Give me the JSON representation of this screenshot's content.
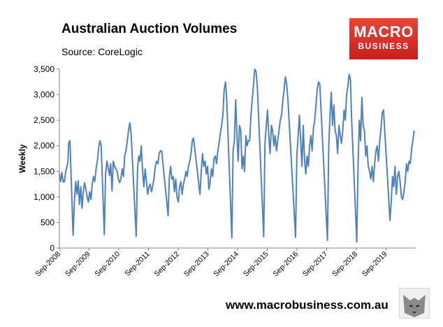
{
  "header": {
    "title": "Australian Auction Volumes",
    "subtitle": "Source: CoreLogic"
  },
  "logo": {
    "line1": "MACRO",
    "line2": "BUSINESS",
    "color": "#d9302a"
  },
  "footer": {
    "url": "www.macrobusiness.com.au",
    "icon": "wolf-icon"
  },
  "chart_data": {
    "type": "line",
    "title": "Australian Auction Volumes",
    "ylabel": "Weekly",
    "xlabel": "",
    "ylim": [
      0,
      3500
    ],
    "yticks": [
      0,
      500,
      1000,
      1500,
      2000,
      2500,
      3000,
      3500
    ],
    "ytick_labels": [
      "0",
      "500",
      "1,000",
      "1,500",
      "2,000",
      "2,500",
      "3,000",
      "3,500"
    ],
    "xticks": [
      "Sep-2008",
      "Sep-2009",
      "Sep-2010",
      "Sep-2011",
      "Sep-2012",
      "Sep-2013",
      "Sep-2014",
      "Sep-2015",
      "Sep-2016",
      "Sep-2017",
      "Sep-2018",
      "Sep-2019"
    ],
    "grid": false,
    "line_color": "#4f81bd",
    "series": [
      {
        "values": [
          [
            2008.67,
            1450
          ],
          [
            2008.71,
            1300
          ],
          [
            2008.75,
            1480
          ],
          [
            2008.79,
            1290
          ],
          [
            2008.83,
            1300
          ],
          [
            2008.87,
            1500
          ],
          [
            2008.91,
            1600
          ],
          [
            2008.94,
            1700
          ],
          [
            2008.96,
            2050
          ],
          [
            2009.0,
            2100
          ],
          [
            2009.1,
            250
          ],
          [
            2009.14,
            900
          ],
          [
            2009.18,
            1300
          ],
          [
            2009.22,
            1050
          ],
          [
            2009.26,
            1320
          ],
          [
            2009.3,
            850
          ],
          [
            2009.34,
            1200
          ],
          [
            2009.38,
            780
          ],
          [
            2009.42,
            1100
          ],
          [
            2009.46,
            1280
          ],
          [
            2009.5,
            1150
          ],
          [
            2009.54,
            1000
          ],
          [
            2009.58,
            900
          ],
          [
            2009.62,
            1100
          ],
          [
            2009.66,
            950
          ],
          [
            2009.7,
            1250
          ],
          [
            2009.74,
            1400
          ],
          [
            2009.78,
            1300
          ],
          [
            2009.82,
            1550
          ],
          [
            2009.86,
            1700
          ],
          [
            2009.9,
            1950
          ],
          [
            2009.94,
            2100
          ],
          [
            2009.98,
            2000
          ],
          [
            2010.08,
            260
          ],
          [
            2010.12,
            1450
          ],
          [
            2010.16,
            1700
          ],
          [
            2010.2,
            1580
          ],
          [
            2010.24,
            1420
          ],
          [
            2010.28,
            1650
          ],
          [
            2010.32,
            1120
          ],
          [
            2010.36,
            1700
          ],
          [
            2010.4,
            1600
          ],
          [
            2010.44,
            1550
          ],
          [
            2010.48,
            1500
          ],
          [
            2010.52,
            1350
          ],
          [
            2010.56,
            1280
          ],
          [
            2010.6,
            1350
          ],
          [
            2010.64,
            1550
          ],
          [
            2010.68,
            1400
          ],
          [
            2010.72,
            1800
          ],
          [
            2010.76,
            1900
          ],
          [
            2010.8,
            2100
          ],
          [
            2010.84,
            2300
          ],
          [
            2010.88,
            2450
          ],
          [
            2010.92,
            2250
          ],
          [
            2011.08,
            230
          ],
          [
            2011.12,
            1550
          ],
          [
            2011.16,
            1800
          ],
          [
            2011.2,
            1700
          ],
          [
            2011.24,
            2000
          ],
          [
            2011.28,
            1500
          ],
          [
            2011.32,
            1200
          ],
          [
            2011.36,
            1550
          ],
          [
            2011.4,
            1300
          ],
          [
            2011.44,
            1050
          ],
          [
            2011.48,
            1200
          ],
          [
            2011.52,
            1250
          ],
          [
            2011.56,
            1100
          ],
          [
            2011.6,
            1220
          ],
          [
            2011.64,
            1380
          ],
          [
            2011.68,
            1600
          ],
          [
            2011.72,
            1700
          ],
          [
            2011.76,
            1650
          ],
          [
            2011.8,
            1850
          ],
          [
            2011.84,
            1900
          ],
          [
            2011.88,
            1900
          ],
          [
            2012.08,
            630
          ],
          [
            2012.12,
            1400
          ],
          [
            2012.16,
            1600
          ],
          [
            2012.2,
            1350
          ],
          [
            2012.24,
            1400
          ],
          [
            2012.28,
            1100
          ],
          [
            2012.32,
            1350
          ],
          [
            2012.36,
            1000
          ],
          [
            2012.4,
            900
          ],
          [
            2012.44,
            1200
          ],
          [
            2012.48,
            1300
          ],
          [
            2012.52,
            1050
          ],
          [
            2012.56,
            1250
          ],
          [
            2012.6,
            1350
          ],
          [
            2012.64,
            1500
          ],
          [
            2012.68,
            1400
          ],
          [
            2012.72,
            1600
          ],
          [
            2012.76,
            1700
          ],
          [
            2012.8,
            1850
          ],
          [
            2012.84,
            2100
          ],
          [
            2012.88,
            2150
          ],
          [
            2013.08,
            1050
          ],
          [
            2013.12,
            1500
          ],
          [
            2013.16,
            1850
          ],
          [
            2013.2,
            1600
          ],
          [
            2013.24,
            1700
          ],
          [
            2013.28,
            1450
          ],
          [
            2013.32,
            1600
          ],
          [
            2013.36,
            1150
          ],
          [
            2013.4,
            1300
          ],
          [
            2013.44,
            1550
          ],
          [
            2013.48,
            1400
          ],
          [
            2013.52,
            1750
          ],
          [
            2013.56,
            1800
          ],
          [
            2013.6,
            1650
          ],
          [
            2013.64,
            1900
          ],
          [
            2013.68,
            2050
          ],
          [
            2013.72,
            2250
          ],
          [
            2013.76,
            2400
          ],
          [
            2013.8,
            2600
          ],
          [
            2013.84,
            3100
          ],
          [
            2013.88,
            3250
          ],
          [
            2013.92,
            2900
          ],
          [
            2014.08,
            200
          ],
          [
            2014.12,
            1900
          ],
          [
            2014.16,
            2100
          ],
          [
            2014.2,
            2900
          ],
          [
            2014.24,
            2200
          ],
          [
            2014.28,
            1700
          ],
          [
            2014.32,
            2400
          ],
          [
            2014.36,
            2300
          ],
          [
            2014.4,
            1550
          ],
          [
            2014.44,
            1800
          ],
          [
            2014.48,
            1500
          ],
          [
            2014.52,
            2200
          ],
          [
            2014.56,
            2000
          ],
          [
            2014.6,
            2100
          ],
          [
            2014.64,
            2100
          ],
          [
            2014.68,
            2600
          ],
          [
            2014.72,
            2900
          ],
          [
            2014.76,
            3200
          ],
          [
            2014.8,
            3500
          ],
          [
            2014.84,
            3450
          ],
          [
            2014.88,
            3150
          ],
          [
            2015.08,
            220
          ],
          [
            2015.12,
            2050
          ],
          [
            2015.16,
            2400
          ],
          [
            2015.2,
            2700
          ],
          [
            2015.24,
            2200
          ],
          [
            2015.28,
            1850
          ],
          [
            2015.32,
            2400
          ],
          [
            2015.36,
            2300
          ],
          [
            2015.4,
            2000
          ],
          [
            2015.44,
            2200
          ],
          [
            2015.48,
            1900
          ],
          [
            2015.52,
            2100
          ],
          [
            2015.56,
            2300
          ],
          [
            2015.6,
            2500
          ],
          [
            2015.64,
            2600
          ],
          [
            2015.68,
            2900
          ],
          [
            2015.72,
            3100
          ],
          [
            2015.76,
            3350
          ],
          [
            2015.8,
            3200
          ],
          [
            2015.84,
            2900
          ],
          [
            2016.08,
            210
          ],
          [
            2016.12,
            1800
          ],
          [
            2016.16,
            2200
          ],
          [
            2016.2,
            2600
          ],
          [
            2016.24,
            2100
          ],
          [
            2016.28,
            1600
          ],
          [
            2016.32,
            2400
          ],
          [
            2016.36,
            1750
          ],
          [
            2016.4,
            1450
          ],
          [
            2016.44,
            1800
          ],
          [
            2016.48,
            1600
          ],
          [
            2016.52,
            2000
          ],
          [
            2016.56,
            2200
          ],
          [
            2016.6,
            1900
          ],
          [
            2016.64,
            2350
          ],
          [
            2016.68,
            2500
          ],
          [
            2016.72,
            2800
          ],
          [
            2016.76,
            3100
          ],
          [
            2016.8,
            3250
          ],
          [
            2016.84,
            3200
          ],
          [
            2017.08,
            150
          ],
          [
            2017.12,
            2000
          ],
          [
            2017.16,
            2600
          ],
          [
            2017.2,
            3050
          ],
          [
            2017.24,
            2400
          ],
          [
            2017.28,
            2800
          ],
          [
            2017.32,
            2300
          ],
          [
            2017.36,
            2200
          ],
          [
            2017.4,
            1850
          ],
          [
            2017.44,
            2400
          ],
          [
            2017.48,
            2200
          ],
          [
            2017.52,
            2050
          ],
          [
            2017.56,
            2300
          ],
          [
            2017.6,
            2700
          ],
          [
            2017.64,
            2500
          ],
          [
            2017.68,
            3000
          ],
          [
            2017.72,
            3150
          ],
          [
            2017.76,
            3400
          ],
          [
            2017.8,
            3300
          ],
          [
            2017.84,
            2500
          ],
          [
            2018.0,
            120
          ],
          [
            2018.04,
            1600
          ],
          [
            2018.08,
            2500
          ],
          [
            2018.12,
            2100
          ],
          [
            2018.16,
            2950
          ],
          [
            2018.2,
            2400
          ],
          [
            2018.24,
            2300
          ],
          [
            2018.28,
            1800
          ],
          [
            2018.32,
            2000
          ],
          [
            2018.36,
            1600
          ],
          [
            2018.4,
            1500
          ],
          [
            2018.44,
            1350
          ],
          [
            2018.48,
            1600
          ],
          [
            2018.52,
            1300
          ],
          [
            2018.56,
            1650
          ],
          [
            2018.6,
            1900
          ],
          [
            2018.64,
            2000
          ],
          [
            2018.68,
            1700
          ],
          [
            2018.72,
            2100
          ],
          [
            2018.76,
            2350
          ],
          [
            2018.8,
            2650
          ],
          [
            2018.84,
            2700
          ],
          [
            2019.04,
            540
          ],
          [
            2019.08,
            900
          ],
          [
            2019.12,
            1400
          ],
          [
            2019.16,
            1200
          ],
          [
            2019.2,
            1600
          ],
          [
            2019.24,
            1050
          ],
          [
            2019.28,
            1400
          ],
          [
            2019.32,
            1500
          ],
          [
            2019.36,
            1300
          ],
          [
            2019.4,
            1000
          ],
          [
            2019.44,
            950
          ],
          [
            2019.48,
            1100
          ],
          [
            2019.52,
            1300
          ],
          [
            2019.56,
            1650
          ],
          [
            2019.6,
            1500
          ],
          [
            2019.64,
            1700
          ],
          [
            2019.68,
            1650
          ],
          [
            2019.72,
            1950
          ],
          [
            2019.76,
            2100
          ],
          [
            2019.8,
            2300
          ]
        ]
      }
    ]
  }
}
